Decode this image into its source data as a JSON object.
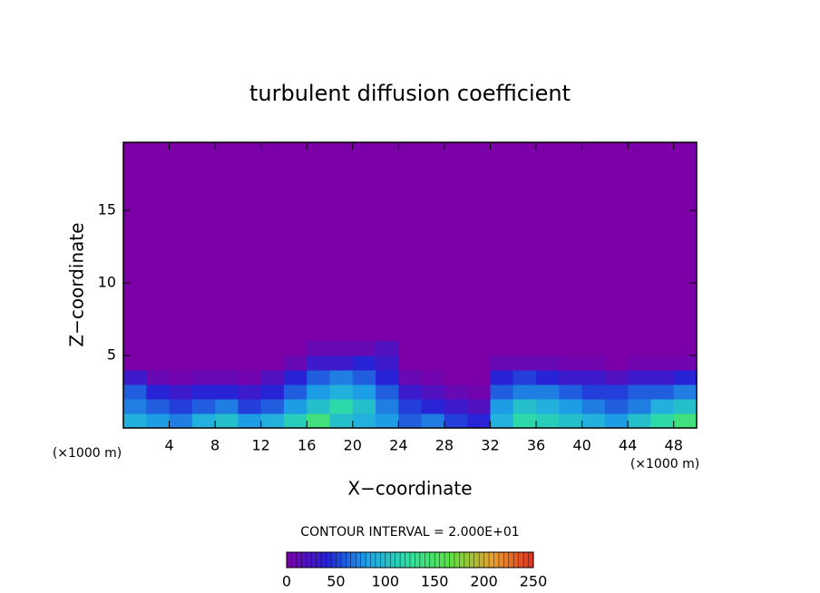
{
  "chart_data": {
    "type": "contour",
    "title": "turbulent diffusion coefficient",
    "xlabel": "X−coordinate",
    "ylabel": "Z−coordinate",
    "x_unit_labels": [
      "(×1000 m)",
      "(×1000 m)"
    ],
    "xlim": [
      0,
      50
    ],
    "ylim": [
      0,
      19.7
    ],
    "xticks": [
      4,
      8,
      12,
      16,
      20,
      24,
      28,
      32,
      36,
      40,
      44,
      48
    ],
    "yticks": [
      5,
      10,
      15
    ],
    "contour_interval_label": "CONTOUR INTERVAL = 2.000E+01",
    "clim": [
      0,
      250
    ],
    "cticks": [
      0,
      50,
      100,
      150,
      200,
      250
    ],
    "colormap": [
      "#7c00a8",
      "#2424d8",
      "#1ea8e8",
      "#30e0a0",
      "#60e040",
      "#e8a030",
      "#e03020"
    ],
    "field": {
      "x": [
        1,
        3,
        5,
        7,
        9,
        11,
        13,
        15,
        17,
        19,
        21,
        23,
        25,
        27,
        29,
        31,
        33,
        35,
        37,
        39,
        41,
        43,
        45,
        47,
        49
      ],
      "z": [
        0.5,
        1.5,
        2.5,
        3.5,
        4.5,
        5.5
      ],
      "values": [
        [
          90,
          70,
          60,
          30,
          0,
          0
        ],
        [
          80,
          60,
          40,
          10,
          0,
          0
        ],
        [
          70,
          50,
          30,
          5,
          0,
          0
        ],
        [
          90,
          60,
          40,
          10,
          0,
          0
        ],
        [
          100,
          70,
          40,
          10,
          0,
          0
        ],
        [
          80,
          50,
          30,
          5,
          0,
          0
        ],
        [
          90,
          60,
          40,
          20,
          0,
          0
        ],
        [
          110,
          80,
          60,
          40,
          10,
          0
        ],
        [
          140,
          100,
          80,
          60,
          30,
          10
        ],
        [
          100,
          120,
          90,
          70,
          30,
          10
        ],
        [
          90,
          100,
          80,
          60,
          40,
          10
        ],
        [
          80,
          70,
          60,
          40,
          30,
          20
        ],
        [
          60,
          50,
          30,
          10,
          0,
          0
        ],
        [
          70,
          40,
          20,
          5,
          0,
          0
        ],
        [
          50,
          30,
          10,
          0,
          0,
          0
        ],
        [
          40,
          20,
          5,
          0,
          0,
          0
        ],
        [
          90,
          80,
          60,
          40,
          10,
          0
        ],
        [
          120,
          100,
          70,
          50,
          10,
          0
        ],
        [
          110,
          90,
          70,
          40,
          10,
          0
        ],
        [
          100,
          80,
          60,
          30,
          5,
          0
        ],
        [
          90,
          70,
          50,
          30,
          5,
          0
        ],
        [
          80,
          60,
          50,
          20,
          0,
          0
        ],
        [
          100,
          70,
          60,
          30,
          5,
          0
        ],
        [
          120,
          90,
          60,
          30,
          5,
          0
        ],
        [
          140,
          100,
          70,
          40,
          5,
          0
        ]
      ]
    }
  }
}
